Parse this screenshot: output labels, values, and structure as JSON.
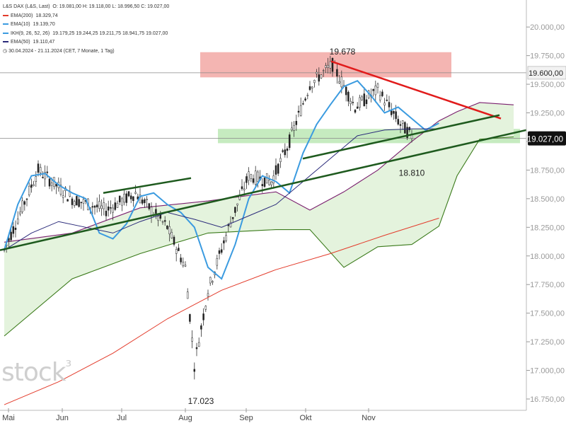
{
  "header": {
    "instrument": "L&S DAX (L&S, Last)",
    "ohlc": "O: 19.081,00   H: 19.118,00   L: 18.996,50   C: 19.027,00",
    "period": "30.04.2024 - 21.11.2024   (CET, 7 Monate, 1 Tag)"
  },
  "legend": [
    {
      "name": "EMA(200)",
      "value": "18.329,74",
      "color": "#e33b2b"
    },
    {
      "name": "EMA(10)",
      "value": "19.139,70",
      "color": "#3b9be0"
    },
    {
      "name": "IKH(9, 26, 52, 26)",
      "value": "19.179,25   19.244,25   19.211,75   18.941,75   19.027,00",
      "color": "#3b9be0"
    },
    {
      "name": "EMA(50)",
      "value": "19.110,47",
      "color": "#2a2a7a"
    }
  ],
  "watermark": "stock",
  "colors": {
    "resistance_zone": "#f2a8a4",
    "support_zone": "#b8e6b0",
    "cloud_fill": "#e4f3dd",
    "price_badge": "#111111",
    "trend_red": "#e11b1b",
    "trend_green": "#1e5a1e"
  },
  "chart_data": {
    "type": "line",
    "x_axis": {
      "ticks": [
        "Mai",
        "Jun",
        "Jul",
        "Aug",
        "Sep",
        "Okt",
        "Nov"
      ]
    },
    "y_axis": {
      "min": 16750,
      "max": 20100,
      "ticks": [
        "20.000,00",
        "19.750,00",
        "19.500,00",
        "19.250,00",
        "19.000,00",
        "18.750,00",
        "18.500,00",
        "18.250,00",
        "18.000,00",
        "17.750,00",
        "17.500,00",
        "17.250,00",
        "17.000,00",
        "16.750,00"
      ],
      "tick_values": [
        20000,
        19750,
        19500,
        19250,
        19000,
        18750,
        18500,
        18250,
        18000,
        17750,
        17500,
        17250,
        17000,
        16750
      ]
    },
    "price_labels": [
      {
        "label": "19.600,00",
        "value": 19600
      },
      {
        "label": "19.027,00",
        "value": 19027
      }
    ],
    "annotations": [
      {
        "text": "19.678",
        "value": 19678
      },
      {
        "text": "18.810",
        "value": 18810
      },
      {
        "text": "17.023",
        "value": 17023
      }
    ],
    "series": [
      {
        "name": "EMA(10)",
        "color": "#3b9be0",
        "x": [
          0,
          6,
          12,
          18,
          24,
          30,
          36,
          42,
          48,
          54,
          60,
          66,
          72,
          78,
          84,
          90,
          96,
          102,
          108,
          114,
          120,
          126,
          132,
          138,
          144,
          150,
          156,
          162,
          168,
          174,
          180,
          186,
          192,
          198,
          204
        ],
        "y": [
          18050,
          18450,
          18700,
          18720,
          18620,
          18550,
          18500,
          18200,
          18150,
          18280,
          18520,
          18550,
          18450,
          18380,
          18250,
          17900,
          17800,
          18100,
          18500,
          18700,
          18650,
          18550,
          18900,
          19150,
          19320,
          19480,
          19530,
          19400,
          19250,
          19300,
          19200,
          19100,
          19160,
          null,
          null
        ]
      },
      {
        "name": "EMA(50)",
        "color": "#2a2a7a",
        "x": [
          0,
          12,
          24,
          36,
          48,
          60,
          72,
          84,
          96,
          108,
          120,
          132,
          144,
          156,
          168,
          180,
          192
        ],
        "y": [
          18050,
          18200,
          18300,
          18250,
          18200,
          18300,
          18380,
          18320,
          18250,
          18350,
          18450,
          18650,
          18850,
          19050,
          19100,
          19110,
          19110
        ]
      },
      {
        "name": "EMA(200)",
        "color": "#e33b2b",
        "x": [
          0,
          24,
          48,
          72,
          96,
          120,
          144,
          168,
          192
        ],
        "y": [
          16700,
          16900,
          17150,
          17450,
          17700,
          17880,
          18020,
          18180,
          18330
        ]
      }
    ]
  }
}
